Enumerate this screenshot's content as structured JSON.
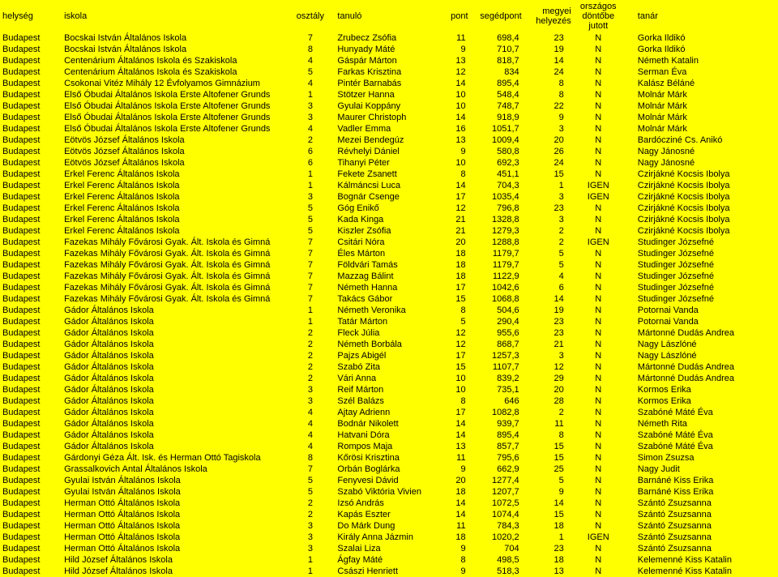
{
  "headers": {
    "helyseg": "helység",
    "iskola": "iskola",
    "osztaly": "osztály",
    "tanulo": "tanuló",
    "pont": "pont",
    "segedpont": "segédpont",
    "megyei": "megyei helyezés",
    "orszagos": "országos döntőbe jutott",
    "tanar": "tanár"
  },
  "rows": [
    [
      "Budapest",
      "Bocskai István Általános Iskola",
      "7",
      "Zrubecz Zsófia",
      "11",
      "698,4",
      "23",
      "N",
      "Gorka Ildikó"
    ],
    [
      "Budapest",
      "Bocskai István Általános Iskola",
      "8",
      "Hunyady Máté",
      "9",
      "710,7",
      "19",
      "N",
      "Gorka Ildikó"
    ],
    [
      "Budapest",
      "Centenárium Általános Iskola és Szakiskola",
      "4",
      "Gáspár Márton",
      "13",
      "818,7",
      "14",
      "N",
      "Németh Katalin"
    ],
    [
      "Budapest",
      "Centenárium Általános Iskola és Szakiskola",
      "5",
      "Farkas Krisztina",
      "12",
      "834",
      "24",
      "N",
      "Serman Éva"
    ],
    [
      "Budapest",
      "Csokonai Vitéz Mihály 12 Évfolyamos Gimnázium",
      "4",
      "Pintér Barnabás",
      "14",
      "895,4",
      "8",
      "N",
      "Kalász Béláné"
    ],
    [
      "Budapest",
      "Első Óbudai Általános Iskola Erste Altofener Grunds",
      "1",
      "Stötzer Hanna",
      "10",
      "548,4",
      "8",
      "N",
      "Molnár Márk"
    ],
    [
      "Budapest",
      "Első Óbudai Általános Iskola Erste Altofener Grunds",
      "3",
      "Gyulai Koppány",
      "10",
      "748,7",
      "22",
      "N",
      "Molnár Márk"
    ],
    [
      "Budapest",
      "Első Óbudai Általános Iskola Erste Altofener Grunds",
      "3",
      "Maurer Christoph",
      "14",
      "918,9",
      "9",
      "N",
      "Molnár Márk"
    ],
    [
      "Budapest",
      "Első Óbudai Általános Iskola Erste Altofener Grunds",
      "4",
      "Vadler Emma",
      "16",
      "1051,7",
      "3",
      "N",
      "Molnár Márk"
    ],
    [
      "Budapest",
      "Eötvös József Általános Iskola",
      "2",
      "Mezei Bendegúz",
      "13",
      "1009,4",
      "20",
      "N",
      "Bardócziné Cs. Anikó"
    ],
    [
      "Budapest",
      "Eötvös József Általános Iskola",
      "6",
      "Révhelyi Dániel",
      "9",
      "580,8",
      "26",
      "N",
      "Nagy Jánosné"
    ],
    [
      "Budapest",
      "Eötvös József Általános Iskola",
      "6",
      "Tihanyi Péter",
      "10",
      "692,3",
      "24",
      "N",
      "Nagy Jánosné"
    ],
    [
      "Budapest",
      "Erkel Ferenc Általános Iskola",
      "1",
      "Fekete Zsanett",
      "8",
      "451,1",
      "15",
      "N",
      "Czirjákné Kocsis Ibolya"
    ],
    [
      "Budapest",
      "Erkel Ferenc Általános Iskola",
      "1",
      "Kálmáncsi Luca",
      "14",
      "704,3",
      "1",
      "IGEN",
      "Czirjákné Kocsis Ibolya"
    ],
    [
      "Budapest",
      "Erkel Ferenc Általános Iskola",
      "3",
      "Bognár Csenge",
      "17",
      "1035,4",
      "3",
      "IGEN",
      "Czirjákné Kocsis Ibolya"
    ],
    [
      "Budapest",
      "Erkel Ferenc Általános Iskola",
      "5",
      "Góg Enikő",
      "12",
      "796,8",
      "23",
      "N",
      "Czirjákné Kocsis Ibolya"
    ],
    [
      "Budapest",
      "Erkel Ferenc Általános Iskola",
      "5",
      "Kada Kinga",
      "21",
      "1328,8",
      "3",
      "N",
      "Czirjákné Kocsis Ibolya"
    ],
    [
      "Budapest",
      "Erkel Ferenc Általános Iskola",
      "5",
      "Kiszler Zsófia",
      "21",
      "1279,3",
      "2",
      "N",
      "Czirjákné Kocsis Ibolya"
    ],
    [
      "Budapest",
      "Fazekas Mihály Fővárosi Gyak. Ált. Iskola és Gimná",
      "7",
      "Csitári Nóra",
      "20",
      "1288,8",
      "2",
      "IGEN",
      "Studinger Józsefné"
    ],
    [
      "Budapest",
      "Fazekas Mihály Fővárosi Gyak. Ált. Iskola és Gimná",
      "7",
      "Éles Márton",
      "18",
      "1179,7",
      "5",
      "N",
      "Studinger Józsefné"
    ],
    [
      "Budapest",
      "Fazekas Mihály Fővárosi Gyak. Ált. Iskola és Gimná",
      "7",
      "Földvári Tamás",
      "18",
      "1179,7",
      "5",
      "N",
      "Studinger Józsefné"
    ],
    [
      "Budapest",
      "Fazekas Mihály Fővárosi Gyak. Ált. Iskola és Gimná",
      "7",
      "Mazzag Bálint",
      "18",
      "1122,9",
      "4",
      "N",
      "Studinger Józsefné"
    ],
    [
      "Budapest",
      "Fazekas Mihály Fővárosi Gyak. Ált. Iskola és Gimná",
      "7",
      "Németh Hanna",
      "17",
      "1042,6",
      "6",
      "N",
      "Studinger Józsefné"
    ],
    [
      "Budapest",
      "Fazekas Mihály Fővárosi Gyak. Ált. Iskola és Gimná",
      "7",
      "Takács Gábor",
      "15",
      "1068,8",
      "14",
      "N",
      "Studinger Józsefné"
    ],
    [
      "Budapest",
      "Gádor Általános Iskola",
      "1",
      "Németh Veronika",
      "8",
      "504,6",
      "19",
      "N",
      "Potornai Vanda"
    ],
    [
      "Budapest",
      "Gádor Általános Iskola",
      "1",
      "Tatár Márton",
      "5",
      "290,4",
      "23",
      "N",
      "Potornai Vanda"
    ],
    [
      "Budapest",
      "Gádor Általános Iskola",
      "2",
      "Fleck Júlia",
      "12",
      "955,6",
      "23",
      "N",
      "Mártonné Dudás Andrea"
    ],
    [
      "Budapest",
      "Gádor Általános Iskola",
      "2",
      "Németh Borbála",
      "12",
      "868,7",
      "21",
      "N",
      "Nagy Lászlóné"
    ],
    [
      "Budapest",
      "Gádor Általános Iskola",
      "2",
      "Pajzs Abigél",
      "17",
      "1257,3",
      "3",
      "N",
      "Nagy Lászlóné"
    ],
    [
      "Budapest",
      "Gádor Általános Iskola",
      "2",
      "Szabó Zita",
      "15",
      "1107,7",
      "12",
      "N",
      "Mártonné Dudás Andrea"
    ],
    [
      "Budapest",
      "Gádor Általános Iskola",
      "2",
      "Vári Anna",
      "10",
      "839,2",
      "29",
      "N",
      "Mártonné Dudás Andrea"
    ],
    [
      "Budapest",
      "Gádor Általános Iskola",
      "3",
      "Reif Márton",
      "10",
      "735,1",
      "20",
      "N",
      "Kormos Erika"
    ],
    [
      "Budapest",
      "Gádor Általános Iskola",
      "3",
      "Szél Balázs",
      "8",
      "646",
      "28",
      "N",
      "Kormos Erika"
    ],
    [
      "Budapest",
      "Gádor Általános Iskola",
      "4",
      "Ajtay Adrienn",
      "17",
      "1082,8",
      "2",
      "N",
      "Szabóné Máté Éva"
    ],
    [
      "Budapest",
      "Gádor Általános Iskola",
      "4",
      "Bodnár Nikolett",
      "14",
      "939,7",
      "11",
      "N",
      "Németh Rita"
    ],
    [
      "Budapest",
      "Gádor Általános Iskola",
      "4",
      "Hatvani Dóra",
      "14",
      "895,4",
      "8",
      "N",
      "Szabóné Máté Éva"
    ],
    [
      "Budapest",
      "Gádor Általános Iskola",
      "4",
      "Rompos Maja",
      "13",
      "857,7",
      "15",
      "N",
      "Szabóné Máté Éva"
    ],
    [
      "Budapest",
      "Gárdonyi Géza Ált. Isk. és Herman Ottó Tagiskola",
      "8",
      "Kőrösi Krisztina",
      "11",
      "795,6",
      "15",
      "N",
      "Simon Zsuzsa"
    ],
    [
      "Budapest",
      "Grassalkovich Antal Általános Iskola",
      "7",
      "Orbán Boglárka",
      "9",
      "662,9",
      "25",
      "N",
      "Nagy Judit"
    ],
    [
      "Budapest",
      "Gyulai István Általános Iskola",
      "5",
      "Fenyvesi Dávid",
      "20",
      "1277,4",
      "5",
      "N",
      "Barnáné Kiss Erika"
    ],
    [
      "Budapest",
      "Gyulai István Általános Iskola",
      "5",
      "Szabó Viktória Vivien",
      "18",
      "1207,7",
      "9",
      "N",
      "Barnáné Kiss Erika"
    ],
    [
      "Budapest",
      "Herman Ottó Általános Iskola",
      "2",
      "Izsó András",
      "14",
      "1072,5",
      "14",
      "N",
      "Szántó Zsuzsanna"
    ],
    [
      "Budapest",
      "Herman Ottó Általános Iskola",
      "2",
      "Kapás Eszter",
      "14",
      "1074,4",
      "15",
      "N",
      "Szántó Zsuzsanna"
    ],
    [
      "Budapest",
      "Herman Ottó Általános Iskola",
      "3",
      "Do Márk Dung",
      "11",
      "784,3",
      "18",
      "N",
      "Szántó Zsuzsanna"
    ],
    [
      "Budapest",
      "Herman Ottó Általános Iskola",
      "3",
      "Király Anna Jázmin",
      "18",
      "1020,2",
      "1",
      "IGEN",
      "Szántó Zsuzsanna"
    ],
    [
      "Budapest",
      "Herman Ottó Általános Iskola",
      "3",
      "Szalai Liza",
      "9",
      "704",
      "23",
      "N",
      "Szántó Zsuzsanna"
    ],
    [
      "Budapest",
      "Hild József Általános Iskola",
      "1",
      "Ágfay Máté",
      "8",
      "498,5",
      "18",
      "N",
      "Kelemenné Kiss Katalin"
    ],
    [
      "Budapest",
      "Hild József Általános Iskola",
      "1",
      "Császi Henriett",
      "9",
      "518,3",
      "13",
      "N",
      "Kelemenné Kiss Katalin"
    ]
  ]
}
